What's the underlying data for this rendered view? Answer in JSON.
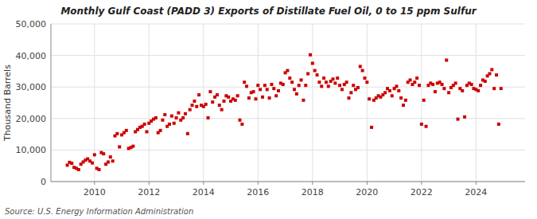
{
  "chart_data": {
    "type": "scatter",
    "title": "Monthly Gulf Coast (PADD 3) Exports of Distillate Fuel Oil, 0 to 15 ppm Sulfur",
    "ylabel": "Thousand Barrels",
    "annotations": [
      "Source: U.S. Energy Information Administration"
    ],
    "color": "#cc0000",
    "grid": true,
    "xlim": [
      2008.4,
      2025.8
    ],
    "xticks": [
      2010,
      2012,
      2014,
      2016,
      2018,
      2020,
      2022,
      2024
    ],
    "ylim": [
      0,
      50000
    ],
    "yticks": [
      0,
      {
        "value": 10000,
        "label": "10,000"
      },
      {
        "value": 20000,
        "label": "20,000"
      },
      {
        "value": 30000,
        "label": "30,000"
      },
      {
        "value": 40000,
        "label": "40,000"
      },
      {
        "value": 50000,
        "label": "50,000"
      }
    ],
    "x": [
      2009.0,
      2009.083,
      2009.167,
      2009.25,
      2009.333,
      2009.417,
      2009.5,
      2009.583,
      2009.667,
      2009.75,
      2009.833,
      2009.917,
      2010.0,
      2010.083,
      2010.167,
      2010.25,
      2010.333,
      2010.417,
      2010.5,
      2010.583,
      2010.667,
      2010.75,
      2010.833,
      2010.917,
      2011.0,
      2011.083,
      2011.167,
      2011.25,
      2011.333,
      2011.417,
      2011.5,
      2011.583,
      2011.667,
      2011.75,
      2011.833,
      2011.917,
      2012.0,
      2012.083,
      2012.167,
      2012.25,
      2012.333,
      2012.417,
      2012.5,
      2012.583,
      2012.667,
      2012.75,
      2012.833,
      2012.917,
      2013.0,
      2013.083,
      2013.167,
      2013.25,
      2013.333,
      2013.417,
      2013.5,
      2013.583,
      2013.667,
      2013.75,
      2013.833,
      2013.917,
      2014.0,
      2014.083,
      2014.167,
      2014.25,
      2014.333,
      2014.417,
      2014.5,
      2014.583,
      2014.667,
      2014.75,
      2014.833,
      2014.917,
      2015.0,
      2015.083,
      2015.167,
      2015.25,
      2015.333,
      2015.417,
      2015.5,
      2015.583,
      2015.667,
      2015.75,
      2015.833,
      2015.917,
      2016.0,
      2016.083,
      2016.167,
      2016.25,
      2016.333,
      2016.417,
      2016.5,
      2016.583,
      2016.667,
      2016.75,
      2016.833,
      2016.917,
      2017.0,
      2017.083,
      2017.167,
      2017.25,
      2017.333,
      2017.417,
      2017.5,
      2017.583,
      2017.667,
      2017.75,
      2017.833,
      2017.917,
      2018.0,
      2018.083,
      2018.167,
      2018.25,
      2018.333,
      2018.417,
      2018.5,
      2018.583,
      2018.667,
      2018.75,
      2018.833,
      2018.917,
      2019.0,
      2019.083,
      2019.167,
      2019.25,
      2019.333,
      2019.417,
      2019.5,
      2019.583,
      2019.667,
      2019.75,
      2019.833,
      2019.917,
      2020.0,
      2020.083,
      2020.167,
      2020.25,
      2020.333,
      2020.417,
      2020.5,
      2020.583,
      2020.667,
      2020.75,
      2020.833,
      2020.917,
      2021.0,
      2021.083,
      2021.167,
      2021.25,
      2021.333,
      2021.417,
      2021.5,
      2021.583,
      2021.667,
      2021.75,
      2021.833,
      2021.917,
      2022.0,
      2022.083,
      2022.167,
      2022.25,
      2022.333,
      2022.417,
      2022.5,
      2022.583,
      2022.667,
      2022.75,
      2022.833,
      2022.917,
      2023.0,
      2023.083,
      2023.167,
      2023.25,
      2023.333,
      2023.417,
      2023.5,
      2023.583,
      2023.667,
      2023.75,
      2023.833,
      2023.917,
      2024.0,
      2024.083,
      2024.167,
      2024.25,
      2024.333,
      2024.417,
      2024.5,
      2024.583,
      2024.667,
      2024.75,
      2024.833,
      2024.917
    ],
    "values": [
      5200,
      6100,
      5800,
      4500,
      4200,
      3800,
      5500,
      6200,
      6800,
      7200,
      6500,
      5900,
      8500,
      4200,
      3800,
      9200,
      8800,
      5500,
      6200,
      7800,
      6500,
      14500,
      15200,
      11000,
      14800,
      15500,
      16200,
      10500,
      10800,
      11200,
      15800,
      16500,
      17200,
      17500,
      18200,
      15800,
      18500,
      19200,
      19800,
      20200,
      15500,
      16200,
      19500,
      21200,
      17500,
      18200,
      20800,
      18500,
      20200,
      21800,
      19500,
      20200,
      21500,
      15200,
      22800,
      24200,
      25500,
      23800,
      27500,
      24200,
      23800,
      24500,
      20200,
      28500,
      25200,
      26800,
      27500,
      24200,
      22800,
      25500,
      27200,
      26800,
      25500,
      26200,
      25800,
      27200,
      19500,
      18200,
      31500,
      30200,
      26500,
      28200,
      28500,
      26200,
      30500,
      29200,
      26800,
      30500,
      29200,
      26500,
      30800,
      29500,
      27200,
      28800,
      31200,
      30800,
      34500,
      35200,
      32800,
      31500,
      29200,
      27800,
      30500,
      32200,
      25800,
      30500,
      34200,
      40200,
      37500,
      35200,
      33800,
      31500,
      30200,
      32800,
      31500,
      30200,
      31800,
      32500,
      31200,
      32800,
      30500,
      29200,
      30800,
      31500,
      26500,
      28200,
      30500,
      29200,
      29800,
      36500,
      35200,
      32800,
      31500,
      26200,
      17200,
      25800,
      26500,
      27200,
      26800,
      27500,
      28200,
      29500,
      28800,
      27200,
      29500,
      30200,
      28800,
      26500,
      24200,
      25800,
      31500,
      32200,
      30800,
      31500,
      32800,
      30500,
      18200,
      25800,
      17500,
      30500,
      31200,
      30800,
      28500,
      31200,
      31500,
      30800,
      29500,
      38500,
      28200,
      29800,
      30500,
      31200,
      19800,
      29500,
      28800,
      20500,
      30500,
      31200,
      30800,
      29500,
      29200,
      28800,
      30500,
      32200,
      31800,
      33500,
      34200,
      35500,
      29500,
      33800,
      18200,
      29500
    ]
  }
}
